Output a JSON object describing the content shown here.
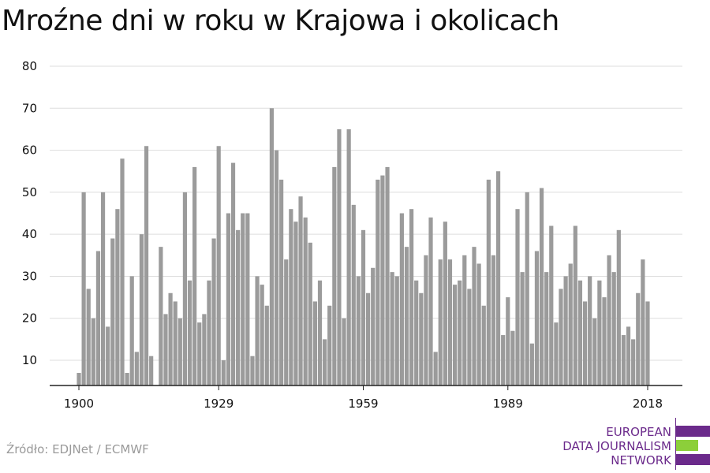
{
  "header": {
    "title": "Mroźne dni w roku w Krajowa i okolicach"
  },
  "footer": {
    "source": "Źródło: EDJNet / ECMWF"
  },
  "logo": {
    "lines": [
      "EUROPEAN",
      "DATA JOURNALISM",
      "NETWORK"
    ],
    "colors": {
      "purple": "#6b2a8b",
      "green": "#8ccf3a"
    }
  },
  "colors": {
    "bar": "#9b9b9b",
    "grid": "#dddddd",
    "axis": "#222222",
    "text": "#111111"
  },
  "chart_data": {
    "type": "bar",
    "title": "Mroźne dni w roku w Krajowa i okolicach",
    "xlabel": "",
    "ylabel": "",
    "ylim": [
      4,
      80
    ],
    "yticks": [
      10,
      20,
      30,
      40,
      50,
      60,
      70,
      80
    ],
    "xticks": [
      1900,
      1929,
      1959,
      1989,
      2018
    ],
    "grid": true,
    "legend": "none",
    "series": [
      {
        "x": [
          1900,
          1901,
          1902,
          1903,
          1904,
          1905,
          1906,
          1907,
          1908,
          1909,
          1910,
          1911,
          1912,
          1913,
          1914,
          1915,
          1916,
          1917,
          1918,
          1919,
          1920,
          1921,
          1922,
          1923,
          1924,
          1925,
          1926,
          1927,
          1928,
          1929,
          1930,
          1931,
          1932,
          1933,
          1934,
          1935,
          1936,
          1937,
          1938,
          1939,
          1940,
          1941,
          1942,
          1943,
          1944,
          1945,
          1946,
          1947,
          1948,
          1949,
          1950,
          1951,
          1952,
          1953,
          1954,
          1955,
          1956,
          1957,
          1958,
          1959,
          1960,
          1961,
          1962,
          1963,
          1964,
          1965,
          1966,
          1967,
          1968,
          1969,
          1970,
          1971,
          1972,
          1973,
          1974,
          1975,
          1976,
          1977,
          1978,
          1979,
          1980,
          1981,
          1982,
          1983,
          1984,
          1985,
          1986,
          1987,
          1988,
          1989,
          1990,
          1991,
          1992,
          1993,
          1994,
          1995,
          1996,
          1997,
          1998,
          1999,
          2000,
          2001,
          2002,
          2003,
          2004,
          2005,
          2006,
          2007,
          2008,
          2009,
          2010,
          2011,
          2012,
          2013,
          2014,
          2015,
          2016,
          2017,
          2018
        ],
        "values": [
          7,
          50,
          27,
          20,
          36,
          50,
          18,
          39,
          46,
          58,
          7,
          30,
          12,
          40,
          61,
          11,
          4,
          37,
          21,
          26,
          24,
          20,
          50,
          29,
          56,
          19,
          21,
          29,
          39,
          61,
          10,
          45,
          57,
          41,
          45,
          45,
          11,
          30,
          28,
          23,
          70,
          60,
          53,
          34,
          46,
          43,
          49,
          44,
          38,
          24,
          29,
          15,
          23,
          56,
          65,
          20,
          65,
          47,
          30,
          41,
          26,
          32,
          53,
          54,
          56,
          31,
          30,
          45,
          37,
          46,
          29,
          26,
          35,
          44,
          12,
          34,
          43,
          34,
          28,
          29,
          35,
          27,
          37,
          33,
          23,
          53,
          35,
          55,
          16,
          25,
          17,
          46,
          31,
          50,
          14,
          36,
          51,
          31,
          42,
          19,
          27,
          30,
          33,
          42,
          29,
          24,
          30,
          20,
          29,
          25,
          35,
          31,
          41,
          16,
          18,
          15,
          26,
          34,
          24
        ]
      }
    ]
  }
}
